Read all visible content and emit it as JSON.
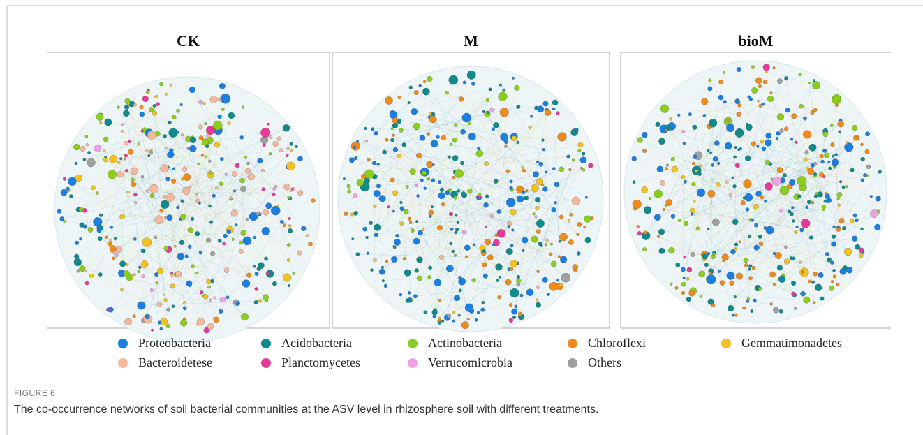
{
  "figure": {
    "panels": [
      "CK",
      "M",
      "bioM"
    ],
    "legend": [
      {
        "label": "Proteobacteria",
        "color": "#1a7fe0"
      },
      {
        "label": "Acidobacteria",
        "color": "#108a8a"
      },
      {
        "label": "Actinobacteria",
        "color": "#8ccf1a"
      },
      {
        "label": "Chloroflexi",
        "color": "#f08a1a"
      },
      {
        "label": "Gemmatimonadetes",
        "color": "#f2c21e"
      },
      {
        "label": "Bacteroidetese",
        "color": "#f5b89a"
      },
      {
        "label": "Planctomycetes",
        "color": "#e8399a"
      },
      {
        "label": "Verrucomicrobia",
        "color": "#f2a0e8"
      },
      {
        "label": "Others",
        "color": "#a0a0a0"
      }
    ],
    "label": "FIGURE 6",
    "caption": "The co-occurrence networks of soil bacterial communities at the ASV level in rhizosphere soil with different treatments."
  }
}
